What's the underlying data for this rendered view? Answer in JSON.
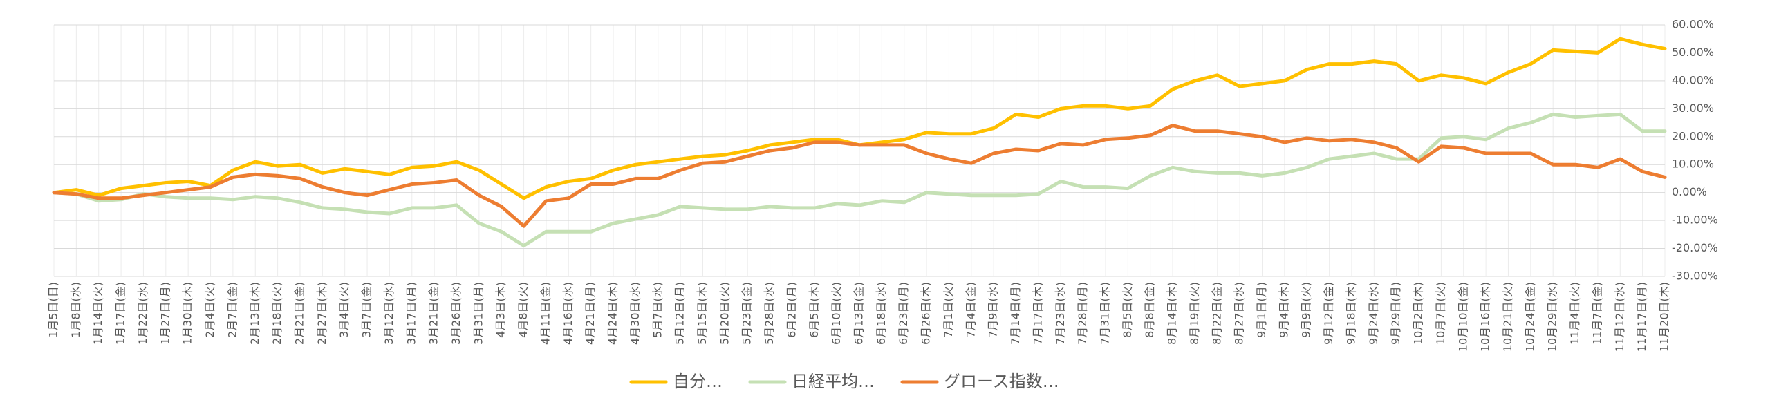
{
  "chart_data": {
    "type": "line",
    "categories": [
      "1月5日(日)",
      "1月8日(水)",
      "1月14日(火)",
      "1月17日(金)",
      "1月22日(水)",
      "1月27日(月)",
      "1月30日(木)",
      "2月4日(火)",
      "2月7日(金)",
      "2月13日(木)",
      "2月18日(火)",
      "2月21日(金)",
      "2月27日(木)",
      "3月4日(火)",
      "3月7日(金)",
      "3月12日(水)",
      "3月17日(月)",
      "3月21日(金)",
      "3月26日(水)",
      "3月31日(月)",
      "4月3日(木)",
      "4月8日(火)",
      "4月11日(金)",
      "4月16日(水)",
      "4月21日(月)",
      "4月24日(木)",
      "4月30日(水)",
      "5月7日(水)",
      "5月12日(月)",
      "5月15日(木)",
      "5月20日(火)",
      "5月23日(金)",
      "5月28日(水)",
      "6月2日(月)",
      "6月5日(木)",
      "6月10日(火)",
      "6月13日(金)",
      "6月18日(水)",
      "6月23日(月)",
      "6月26日(木)",
      "7月1日(火)",
      "7月4日(金)",
      "7月9日(水)",
      "7月14日(月)",
      "7月17日(木)",
      "7月23日(水)",
      "7月28日(月)",
      "7月31日(木)",
      "8月5日(火)",
      "8月8日(金)",
      "8月14日(木)",
      "8月19日(火)",
      "8月22日(金)",
      "8月27日(水)",
      "9月1日(月)",
      "9月4日(木)",
      "9月9日(火)",
      "9月12日(金)",
      "9月18日(木)",
      "9月24日(水)",
      "9月29日(月)",
      "10月2日(木)",
      "10月7日(火)",
      "10月10日(金)",
      "10月16日(木)",
      "10月21日(火)",
      "10月24日(金)",
      "10月29日(水)",
      "11月4日(火)",
      "11月7日(金)",
      "11月12日(水)",
      "11月17日(月)",
      "11月20日(木)"
    ],
    "series": [
      {
        "name": "自分…",
        "color": "#ffc000",
        "values": [
          0,
          1,
          -1,
          1.5,
          2.5,
          3.5,
          4,
          2.5,
          8,
          11,
          9.5,
          10,
          7,
          8.5,
          7.5,
          6.5,
          9,
          9.5,
          11,
          8,
          3,
          -2,
          2,
          4,
          5,
          8,
          10,
          11,
          12,
          13,
          13.5,
          15,
          17,
          18,
          19,
          19,
          17,
          18,
          19,
          21.5,
          21,
          21,
          23,
          28,
          27,
          30,
          31,
          31,
          30,
          31,
          37,
          40,
          42,
          38,
          39,
          40,
          44,
          46,
          46,
          47,
          46,
          40,
          42,
          41,
          39,
          43,
          46,
          51,
          50.5,
          50,
          55,
          53,
          51.5
        ]
      },
      {
        "name": "日経平均…",
        "color": "#c5e0b4",
        "values": [
          0,
          -0.5,
          -3,
          -2.5,
          -0.5,
          -1.5,
          -2,
          -2,
          -2.5,
          -1.5,
          -2,
          -3.5,
          -5.5,
          -6,
          -7,
          -7.5,
          -5.5,
          -5.5,
          -4.5,
          -11,
          -14,
          -19,
          -14,
          -14,
          -14,
          -11,
          -9.5,
          -8,
          -5,
          -5.5,
          -6,
          -6,
          -5,
          -5.5,
          -5.5,
          -4,
          -4.5,
          -3,
          -3.5,
          0,
          -0.5,
          -1,
          -1,
          -1,
          -0.5,
          4,
          2,
          2,
          1.5,
          6,
          9,
          7.5,
          7,
          7,
          6,
          7,
          9,
          12,
          13,
          14,
          12,
          12,
          19.5,
          20,
          19,
          23,
          25,
          28,
          27,
          27.5,
          28,
          22,
          22
        ]
      },
      {
        "name": "グロース指数…",
        "color": "#ed7d31",
        "values": [
          0,
          -0.5,
          -2,
          -2,
          -1,
          0,
          1,
          2,
          5.5,
          6.5,
          6,
          5,
          2,
          0,
          -1,
          1,
          3,
          3.5,
          4.5,
          -1,
          -5,
          -12,
          -3,
          -2,
          3,
          3,
          5,
          5,
          8,
          10.5,
          11,
          13,
          15,
          16,
          18,
          18,
          17,
          17,
          17,
          14,
          12,
          10.5,
          14,
          15.5,
          15,
          17.5,
          17,
          19,
          19.5,
          20.5,
          24,
          22,
          22,
          21,
          20,
          18,
          19.5,
          18.5,
          19,
          18,
          16,
          11,
          16.5,
          16,
          14,
          14,
          14,
          10,
          10,
          9,
          12,
          7.5,
          5.5
        ]
      }
    ],
    "ylim": [
      -30,
      60
    ],
    "yticks": [
      {
        "value": -30,
        "label": "-30.00%"
      },
      {
        "value": -20,
        "label": "-20.00%"
      },
      {
        "value": -10,
        "label": "-10.00%"
      },
      {
        "value": 0,
        "label": "0.00%"
      },
      {
        "value": 10,
        "label": "10.00%"
      },
      {
        "value": 20,
        "label": "20.00%"
      },
      {
        "value": 30,
        "label": "30.00%"
      },
      {
        "value": 40,
        "label": "40.00%"
      },
      {
        "value": 50,
        "label": "50.00%"
      },
      {
        "value": 60,
        "label": "60.00%"
      }
    ],
    "grid": true,
    "legend": "bottom"
  }
}
